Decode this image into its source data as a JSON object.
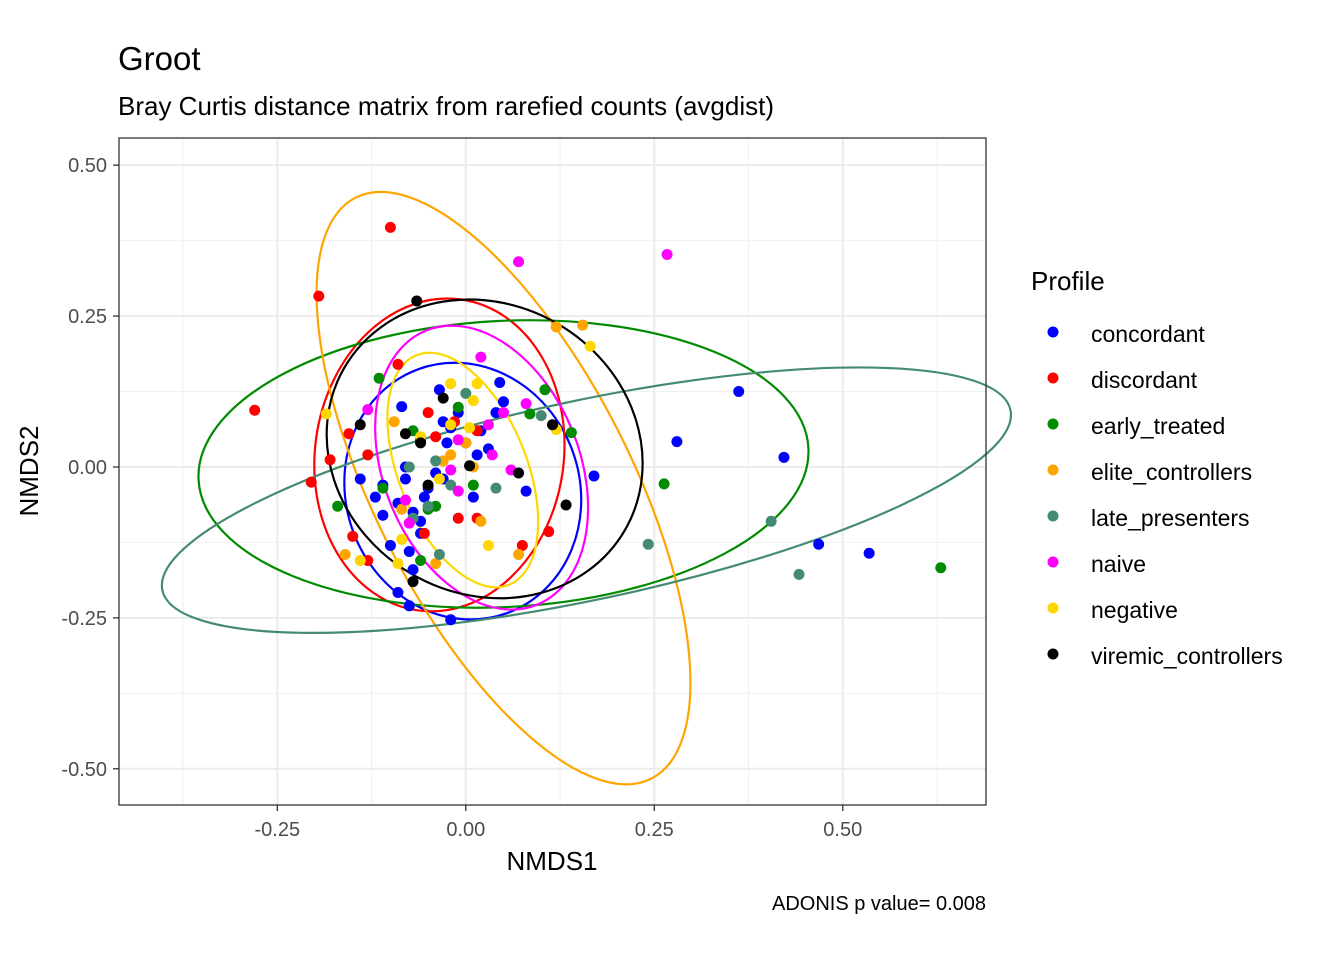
{
  "chart_data": {
    "type": "scatter",
    "title": "Groot",
    "subtitle": "Bray Curtis distance matrix from rarefied counts (avgdist)",
    "xlabel": "NMDS1",
    "ylabel": "NMDS2",
    "caption": "ADONIS p value= 0.008",
    "xlim": [
      -0.46,
      0.69
    ],
    "ylim": [
      -0.56,
      0.545
    ],
    "x_ticks": [
      -0.25,
      0.0,
      0.25,
      0.5
    ],
    "x_tick_labels": [
      "-0.25",
      "0.00",
      "0.25",
      "0.50"
    ],
    "y_ticks": [
      -0.5,
      -0.25,
      0.0,
      0.25,
      0.5
    ],
    "y_tick_labels": [
      "-0.50",
      "-0.25",
      "0.00",
      "0.25",
      "0.50"
    ],
    "grid": true,
    "legend_title": "Profile",
    "legend_position": "right",
    "series": [
      {
        "name": "concordant",
        "color": "#0000FF",
        "ellipse": {
          "cx": -0.004,
          "cy": -0.04,
          "rx": 0.155,
          "ry": 0.215,
          "angle": 20
        },
        "points": [
          [
            -0.14,
            -0.02
          ],
          [
            -0.12,
            -0.05
          ],
          [
            -0.11,
            -0.08
          ],
          [
            -0.1,
            -0.13
          ],
          [
            -0.09,
            -0.06
          ],
          [
            -0.08,
            0.0
          ],
          [
            -0.075,
            -0.14
          ],
          [
            -0.07,
            -0.17
          ],
          [
            -0.06,
            -0.09
          ],
          [
            -0.055,
            -0.05
          ],
          [
            -0.05,
            -0.035
          ],
          [
            -0.04,
            -0.01
          ],
          [
            -0.03,
            -0.02
          ],
          [
            -0.025,
            0.04
          ],
          [
            -0.02,
            0.065
          ],
          [
            -0.01,
            0.09
          ],
          [
            0.0,
            0.04
          ],
          [
            0.01,
            -0.05
          ],
          [
            0.02,
            0.06
          ],
          [
            0.03,
            0.03
          ],
          [
            0.04,
            0.09
          ],
          [
            0.045,
            0.14
          ],
          [
            0.05,
            0.108
          ],
          [
            0.08,
            -0.04
          ],
          [
            0.17,
            -0.015
          ],
          [
            0.28,
            0.042
          ],
          [
            0.362,
            0.125
          ],
          [
            0.422,
            0.016
          ],
          [
            0.468,
            -0.128
          ],
          [
            0.535,
            -0.143
          ],
          [
            -0.02,
            -0.253
          ],
          [
            -0.075,
            -0.23
          ],
          [
            -0.09,
            -0.208
          ],
          [
            -0.08,
            -0.02
          ],
          [
            -0.06,
            0.045
          ],
          [
            -0.03,
            0.075
          ],
          [
            0.015,
            0.02
          ],
          [
            -0.085,
            0.1
          ],
          [
            -0.035,
            0.128
          ],
          [
            -0.11,
            -0.03
          ],
          [
            -0.07,
            -0.075
          ],
          [
            -0.06,
            -0.11
          ]
        ]
      },
      {
        "name": "discordant",
        "color": "#FF0000",
        "ellipse": {
          "cx": -0.035,
          "cy": 0.02,
          "rx": 0.165,
          "ry": 0.26,
          "angle": -8
        },
        "points": [
          [
            -0.28,
            0.094
          ],
          [
            -0.195,
            0.283
          ],
          [
            -0.1,
            0.397
          ],
          [
            -0.205,
            -0.025
          ],
          [
            -0.18,
            0.012
          ],
          [
            -0.155,
            0.055
          ],
          [
            -0.15,
            -0.115
          ],
          [
            -0.13,
            -0.155
          ],
          [
            -0.13,
            0.02
          ],
          [
            -0.09,
            0.17
          ],
          [
            -0.05,
            0.09
          ],
          [
            -0.04,
            0.05
          ],
          [
            -0.015,
            0.075
          ],
          [
            0.015,
            0.06
          ],
          [
            0.015,
            -0.085
          ],
          [
            0.075,
            -0.13
          ],
          [
            0.11,
            -0.107
          ],
          [
            -0.055,
            -0.11
          ],
          [
            -0.01,
            -0.085
          ]
        ]
      },
      {
        "name": "early_treated",
        "color": "#008B00",
        "ellipse": {
          "cx": 0.05,
          "cy": 0.005,
          "rx": 0.405,
          "ry": 0.237,
          "angle": 3
        },
        "points": [
          [
            -0.17,
            -0.065
          ],
          [
            -0.115,
            0.147
          ],
          [
            -0.11,
            -0.035
          ],
          [
            -0.06,
            -0.155
          ],
          [
            -0.05,
            -0.07
          ],
          [
            -0.04,
            -0.065
          ],
          [
            -0.01,
            0.099
          ],
          [
            0.01,
            -0.03
          ],
          [
            0.085,
            0.088
          ],
          [
            0.105,
            0.128
          ],
          [
            0.14,
            0.057
          ],
          [
            0.263,
            -0.028
          ],
          [
            0.63,
            -0.167
          ],
          [
            -0.07,
            0.06
          ]
        ]
      },
      {
        "name": "elite_controllers",
        "color": "#FFA500",
        "ellipse": {
          "cx": 0.05,
          "cy": -0.035,
          "rx": 0.17,
          "ry": 0.54,
          "angle": 27
        },
        "points": [
          [
            0.12,
            0.232
          ],
          [
            0.155,
            0.235
          ],
          [
            -0.16,
            -0.145
          ],
          [
            -0.095,
            0.075
          ],
          [
            -0.085,
            -0.07
          ],
          [
            -0.04,
            -0.16
          ],
          [
            -0.03,
            0.01
          ],
          [
            0.02,
            -0.09
          ],
          [
            0.07,
            -0.145
          ],
          [
            0.0,
            0.04
          ],
          [
            -0.02,
            0.02
          ],
          [
            0.01,
            0.0
          ]
        ]
      },
      {
        "name": "late_presenters",
        "color": "#458B74",
        "ellipse": {
          "cx": 0.16,
          "cy": -0.055,
          "rx": 0.575,
          "ry": 0.165,
          "angle": 12
        },
        "points": [
          [
            -0.075,
            0.0
          ],
          [
            -0.05,
            -0.065
          ],
          [
            -0.04,
            0.01
          ],
          [
            -0.035,
            -0.145
          ],
          [
            -0.02,
            -0.03
          ],
          [
            0.0,
            0.122
          ],
          [
            0.04,
            -0.035
          ],
          [
            0.1,
            0.085
          ],
          [
            0.242,
            -0.128
          ],
          [
            0.405,
            -0.09
          ],
          [
            0.442,
            -0.178
          ],
          [
            -0.07,
            -0.085
          ]
        ]
      },
      {
        "name": "naive",
        "color": "#FF00FF",
        "ellipse": {
          "cx": 0.021,
          "cy": -0.001,
          "rx": 0.13,
          "ry": 0.245,
          "angle": 22
        },
        "points": [
          [
            0.07,
            0.34
          ],
          [
            0.267,
            0.352
          ],
          [
            -0.13,
            0.095
          ],
          [
            -0.08,
            -0.055
          ],
          [
            -0.075,
            -0.093
          ],
          [
            -0.01,
            0.045
          ],
          [
            0.02,
            0.182
          ],
          [
            0.03,
            0.07
          ],
          [
            0.05,
            0.09
          ],
          [
            0.06,
            -0.005
          ],
          [
            0.08,
            0.105
          ],
          [
            -0.02,
            -0.005
          ],
          [
            -0.01,
            -0.04
          ],
          [
            0.035,
            0.02
          ]
        ]
      },
      {
        "name": "negative",
        "color": "#FFD700",
        "ellipse": {
          "cx": -0.004,
          "cy": -0.005,
          "rx": 0.085,
          "ry": 0.205,
          "angle": 22
        },
        "points": [
          [
            -0.185,
            0.088
          ],
          [
            -0.14,
            -0.155
          ],
          [
            -0.09,
            -0.16
          ],
          [
            -0.06,
            0.05
          ],
          [
            -0.05,
            -0.03
          ],
          [
            -0.02,
            0.07
          ],
          [
            -0.02,
            0.138
          ],
          [
            0.005,
            0.065
          ],
          [
            0.01,
            0.11
          ],
          [
            0.015,
            0.138
          ],
          [
            0.03,
            -0.13
          ],
          [
            0.12,
            0.062
          ],
          [
            0.165,
            0.2
          ],
          [
            -0.085,
            -0.12
          ],
          [
            -0.035,
            -0.02
          ]
        ]
      },
      {
        "name": "viremic_controllers",
        "color": "#000000",
        "ellipse": {
          "cx": 0.025,
          "cy": 0.03,
          "rx": 0.215,
          "ry": 0.24,
          "angle": -30
        },
        "points": [
          [
            -0.065,
            0.275
          ],
          [
            -0.14,
            0.07
          ],
          [
            -0.08,
            0.055
          ],
          [
            -0.05,
            -0.03
          ],
          [
            -0.03,
            0.114
          ],
          [
            0.005,
            0.002
          ],
          [
            0.07,
            -0.01
          ],
          [
            0.115,
            0.07
          ],
          [
            0.133,
            -0.063
          ],
          [
            -0.07,
            -0.19
          ],
          [
            -0.06,
            0.04
          ]
        ]
      }
    ]
  }
}
